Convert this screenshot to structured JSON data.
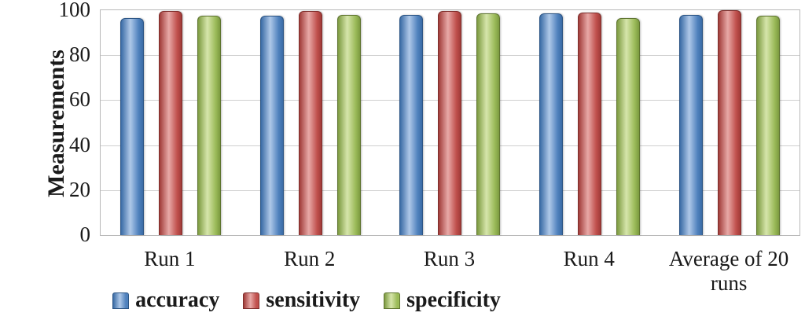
{
  "chart_data": {
    "type": "bar",
    "title": "",
    "xlabel": "",
    "ylabel": "Measurements",
    "ylim": [
      0,
      100
    ],
    "yticks": [
      0,
      20,
      40,
      60,
      80,
      100
    ],
    "grid": true,
    "legend_position": "bottom",
    "categories": [
      "Run 1",
      "Run 2",
      "Run 3",
      "Run 4",
      "Average of 20 runs"
    ],
    "series": [
      {
        "name": "accuracy",
        "color": "#4F81BD",
        "light": "#AEC8E8",
        "dark": "#3A6BA5",
        "border": "#2C5585",
        "values": [
          96.5,
          97.5,
          98,
          98.5,
          98
        ]
      },
      {
        "name": "sensitivity",
        "color": "#C0504D",
        "light": "#E8A9A7",
        "dark": "#A03B38",
        "border": "#7F2E2C",
        "values": [
          99.5,
          99.5,
          99.5,
          99,
          100
        ]
      },
      {
        "name": "specificity",
        "color": "#9BBB59",
        "light": "#D6E5AB",
        "dark": "#7C9A40",
        "border": "#5F7530",
        "values": [
          97.5,
          98,
          98.5,
          96.5,
          97.5
        ]
      }
    ]
  }
}
